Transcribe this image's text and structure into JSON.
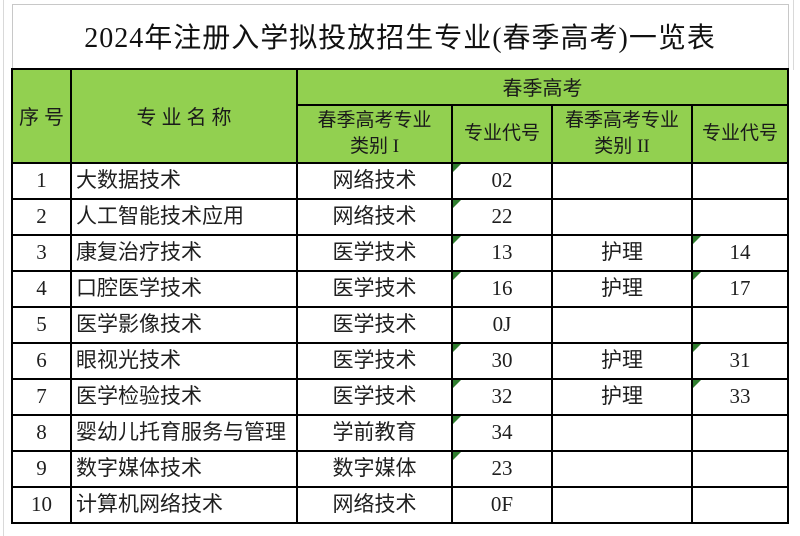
{
  "title": "2024年注册入学拟投放招生专业(春季高考)一览表",
  "headers": {
    "no": "序号",
    "major": "专业名称",
    "spring_group": "春季高考",
    "cat1_line1": "春季高考专业",
    "cat1_line2": "类别 I",
    "code1": "专业代号",
    "cat2_line1": "春季高考专业",
    "cat2_line2": "类别 II",
    "code2": "专业代号"
  },
  "rows": [
    {
      "no": "1",
      "major": "大数据技术",
      "cat1": "网络技术",
      "code1": "02",
      "code1_flag": true,
      "cat2": "",
      "code2": "",
      "code2_flag": false
    },
    {
      "no": "2",
      "major": "人工智能技术应用",
      "cat1": "网络技术",
      "code1": "22",
      "code1_flag": true,
      "cat2": "",
      "code2": "",
      "code2_flag": false
    },
    {
      "no": "3",
      "major": "康复治疗技术",
      "cat1": "医学技术",
      "code1": "13",
      "code1_flag": true,
      "cat2": "护理",
      "code2": "14",
      "code2_flag": true
    },
    {
      "no": "4",
      "major": "口腔医学技术",
      "cat1": "医学技术",
      "code1": "16",
      "code1_flag": true,
      "cat2": "护理",
      "code2": "17",
      "code2_flag": true
    },
    {
      "no": "5",
      "major": "医学影像技术",
      "cat1": "医学技术",
      "code1": "0J",
      "code1_flag": false,
      "cat2": "",
      "code2": "",
      "code2_flag": false
    },
    {
      "no": "6",
      "major": "眼视光技术",
      "cat1": "医学技术",
      "code1": "30",
      "code1_flag": true,
      "cat2": "护理",
      "code2": "31",
      "code2_flag": true
    },
    {
      "no": "7",
      "major": "医学检验技术",
      "cat1": "医学技术",
      "code1": "32",
      "code1_flag": true,
      "cat2": "护理",
      "code2": "33",
      "code2_flag": true
    },
    {
      "no": "8",
      "major": "婴幼儿托育服务与管理",
      "cat1": "学前教育",
      "code1": "34",
      "code1_flag": true,
      "cat2": "",
      "code2": "",
      "code2_flag": false
    },
    {
      "no": "9",
      "major": "数字媒体技术",
      "cat1": "数字媒体",
      "code1": "23",
      "code1_flag": true,
      "cat2": "",
      "code2": "",
      "code2_flag": false
    },
    {
      "no": "10",
      "major": "计算机网络技术",
      "cat1": "网络技术",
      "code1": "0F",
      "code1_flag": false,
      "cat2": "",
      "code2": "",
      "code2_flag": false
    }
  ],
  "colors": {
    "header_green": "#92d050",
    "grid_line": "#000000",
    "title_border_gray": "#c8c8c8",
    "indicator_green": "#2f7d2e",
    "text": "#1f1f1f"
  },
  "icons": {
    "cell_flag": "top-left-dark-green-triangle (number stored as text indicator)"
  }
}
